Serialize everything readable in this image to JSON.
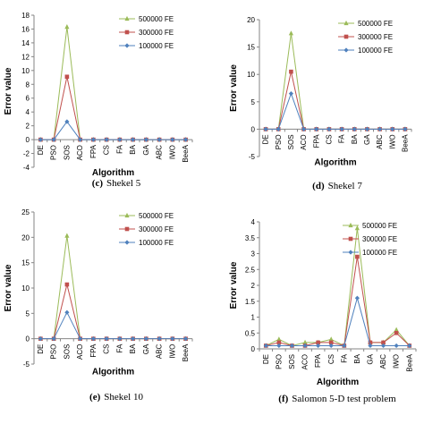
{
  "chart_data": [
    {
      "type": "line",
      "caption_letter": "(c)",
      "caption_text": "Shekel 5",
      "xlabel": "Algorithm",
      "ylabel": "Error value",
      "categories": [
        "DE",
        "PSO",
        "SOS",
        "ACO",
        "FPA",
        "CS",
        "FA",
        "BA",
        "GA",
        "ABC",
        "IWO",
        "BeeA"
      ],
      "ylim": [
        -4,
        18
      ],
      "yticks": [
        -4,
        -2,
        0,
        2,
        4,
        6,
        8,
        10,
        12,
        14,
        16,
        18
      ],
      "legend_position": "top-right",
      "series": [
        {
          "name": "500000 FE",
          "color": "#9bbb59",
          "marker": "triangle",
          "values": [
            0,
            0,
            16.3,
            0,
            0,
            0,
            0,
            0,
            0,
            0,
            0,
            0
          ]
        },
        {
          "name": "300000 FE",
          "color": "#c0504d",
          "marker": "square",
          "values": [
            0,
            0,
            9.1,
            0,
            0,
            0,
            0,
            0,
            0,
            0,
            0,
            0
          ]
        },
        {
          "name": "100000 FE",
          "color": "#4f81bd",
          "marker": "diamond",
          "values": [
            0,
            0,
            2.6,
            0,
            0,
            0,
            0,
            0,
            0,
            0,
            0,
            0
          ]
        }
      ]
    },
    {
      "type": "line",
      "caption_letter": "(d)",
      "caption_text": "Shekel 7",
      "xlabel": "Algorithm",
      "ylabel": "Error value",
      "categories": [
        "DE",
        "PSO",
        "SOS",
        "ACO",
        "FPA",
        "CS",
        "FA",
        "BA",
        "GA",
        "ABC",
        "IWO",
        "BeeA"
      ],
      "ylim": [
        -5,
        20
      ],
      "yticks": [
        -5,
        0,
        5,
        10,
        15,
        20
      ],
      "legend_position": "top-right",
      "series": [
        {
          "name": "500000 FE",
          "color": "#9bbb59",
          "marker": "triangle",
          "values": [
            0,
            0,
            17.5,
            0,
            0,
            0,
            0,
            0,
            0,
            0,
            0,
            0
          ]
        },
        {
          "name": "300000 FE",
          "color": "#c0504d",
          "marker": "square",
          "values": [
            0,
            0,
            10.5,
            0,
            0,
            0,
            0,
            0,
            0,
            0,
            0,
            0
          ]
        },
        {
          "name": "100000 FE",
          "color": "#4f81bd",
          "marker": "diamond",
          "values": [
            0,
            0,
            6.5,
            0,
            0,
            0,
            0,
            0,
            0,
            0,
            0,
            0
          ]
        }
      ]
    },
    {
      "type": "line",
      "caption_letter": "(e)",
      "caption_text": "Shekel 10",
      "xlabel": "Algorithm",
      "ylabel": "Error value",
      "categories": [
        "DE",
        "PSO",
        "SOS",
        "ACO",
        "FPA",
        "CS",
        "FA",
        "BA",
        "GA",
        "ABC",
        "IWO",
        "BeeA"
      ],
      "ylim": [
        -5,
        25
      ],
      "yticks": [
        -5,
        0,
        5,
        10,
        15,
        20,
        25
      ],
      "legend_position": "top-right",
      "series": [
        {
          "name": "500000 FE",
          "color": "#9bbb59",
          "marker": "triangle",
          "values": [
            0,
            0,
            20.3,
            0,
            0,
            0,
            0,
            0,
            0,
            0,
            0,
            0
          ]
        },
        {
          "name": "300000 FE",
          "color": "#c0504d",
          "marker": "square",
          "values": [
            0,
            0,
            10.7,
            0,
            0,
            0,
            0,
            0,
            0,
            0,
            0,
            0
          ]
        },
        {
          "name": "100000 FE",
          "color": "#4f81bd",
          "marker": "diamond",
          "values": [
            0,
            0,
            5.2,
            0,
            0,
            0,
            0,
            0,
            0,
            0,
            0,
            0
          ]
        }
      ]
    },
    {
      "type": "line",
      "caption_letter": "(f)",
      "caption_text": "Salomon 5-D test problem",
      "xlabel": "Algorithm",
      "ylabel": "Error value",
      "categories": [
        "DE",
        "PSO",
        "SOS",
        "ACO",
        "FPA",
        "CS",
        "FA",
        "BA",
        "GA",
        "ABC",
        "IWO",
        "BeeA"
      ],
      "ylim": [
        0,
        4
      ],
      "yticks": [
        0,
        0.5,
        1,
        1.5,
        2,
        2.5,
        3,
        3.5,
        4
      ],
      "legend_position": "top-right",
      "series": [
        {
          "name": "500000 FE",
          "color": "#9bbb59",
          "marker": "triangle",
          "values": [
            0.1,
            0.3,
            0.1,
            0.2,
            0.2,
            0.3,
            0.1,
            3.8,
            0.2,
            0.2,
            0.6,
            0.1
          ]
        },
        {
          "name": "300000 FE",
          "color": "#c0504d",
          "marker": "square",
          "values": [
            0.1,
            0.2,
            0.1,
            0.1,
            0.2,
            0.2,
            0.1,
            2.9,
            0.2,
            0.2,
            0.5,
            0.1
          ]
        },
        {
          "name": "100000 FE",
          "color": "#4f81bd",
          "marker": "diamond",
          "values": [
            0.1,
            0.1,
            0.1,
            0.1,
            0.1,
            0.1,
            0.1,
            1.6,
            0.1,
            0.1,
            0.1,
            0.1
          ]
        }
      ]
    }
  ]
}
